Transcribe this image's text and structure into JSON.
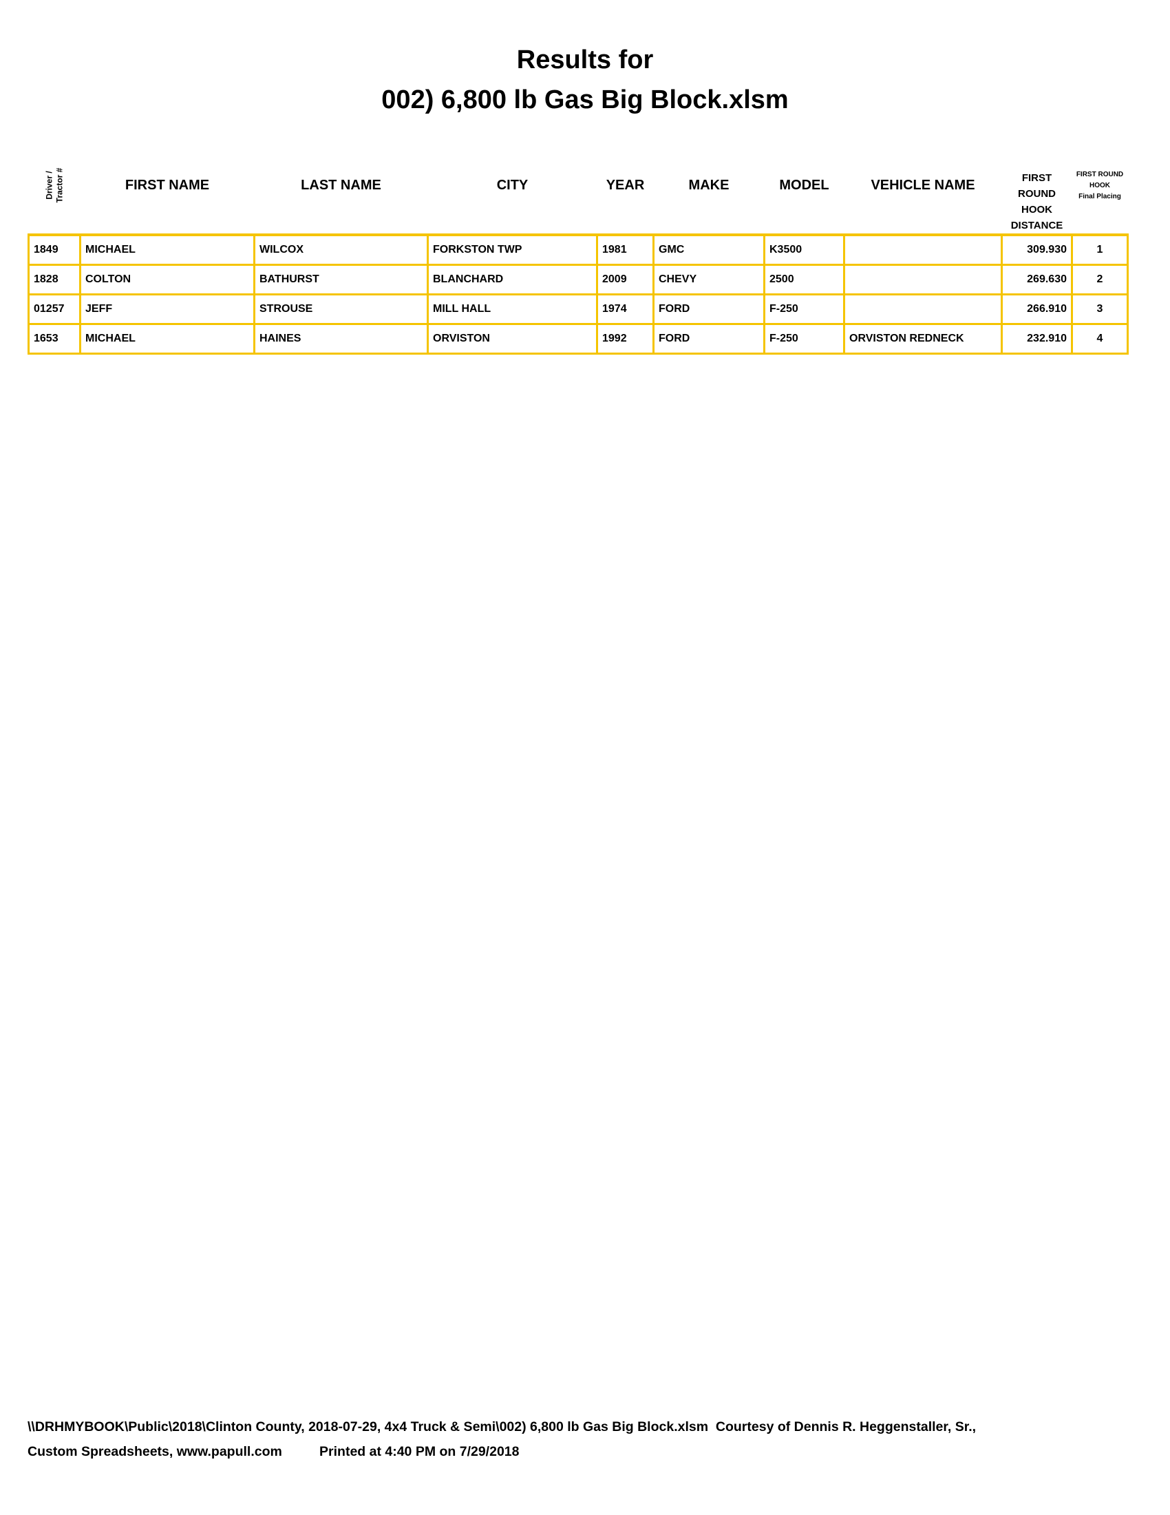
{
  "title": {
    "line1": "Results for",
    "line2": "002) 6,800 lb Gas Big Block.xlsm"
  },
  "table": {
    "headers": {
      "driver_line1": "Driver /",
      "driver_line2": "Tractor #",
      "first_name": "FIRST NAME",
      "last_name": "LAST NAME",
      "city": "CITY",
      "year": "YEAR",
      "make": "MAKE",
      "model": "MODEL",
      "vehicle_name": "VEHICLE NAME",
      "distance_line1": "FIRST",
      "distance_line2": "ROUND",
      "distance_line3": "HOOK",
      "distance_line4": "DISTANCE",
      "placing_line1": "FIRST ROUND",
      "placing_line2": "HOOK",
      "placing_line3": "Final Placing"
    },
    "rows": [
      {
        "number": "1849",
        "first": "MICHAEL",
        "last": "WILCOX",
        "city": "FORKSTON TWP",
        "year": "1981",
        "make": "GMC",
        "model": "K3500",
        "vehicle": "",
        "distance": "309.930",
        "place": "1"
      },
      {
        "number": "1828",
        "first": "COLTON",
        "last": "BATHURST",
        "city": "BLANCHARD",
        "year": "2009",
        "make": "CHEVY",
        "model": "2500",
        "vehicle": "",
        "distance": "269.630",
        "place": "2"
      },
      {
        "number": "01257",
        "first": "JEFF",
        "last": "STROUSE",
        "city": "MILL HALL",
        "year": "1974",
        "make": "FORD",
        "model": "F-250",
        "vehicle": "",
        "distance": "266.910",
        "place": "3"
      },
      {
        "number": "1653",
        "first": "MICHAEL",
        "last": "HAINES",
        "city": "ORVISTON",
        "year": "1992",
        "make": "FORD",
        "model": "F-250",
        "vehicle": "ORVISTON REDNECK",
        "distance": "232.910",
        "place": "4"
      }
    ]
  },
  "footer": {
    "line1": "\\\\DRHMYBOOK\\Public\\2018\\Clinton County, 2018-07-29, 4x4 Truck & Semi\\002) 6,800 lb Gas Big Block.xlsm  Courtesy of Dennis R. Heggenstaller, Sr.,",
    "line2": "Custom Spreadsheets, www.papull.com          Printed at 4:40 PM on 7/29/2018"
  },
  "colors": {
    "grid": "#f5c400"
  }
}
